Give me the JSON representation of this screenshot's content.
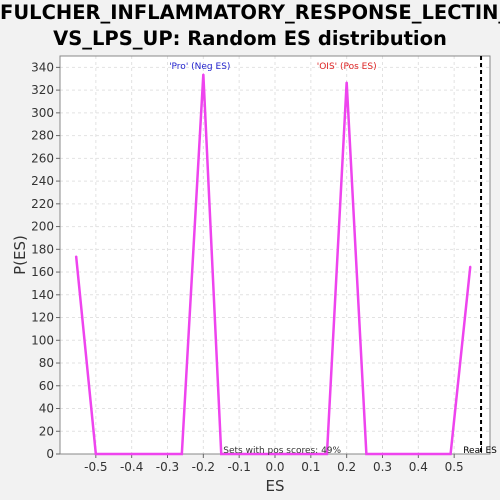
{
  "chart_data": {
    "type": "line",
    "title_lines": [
      "FULCHER_INFLAMMATORY_RESPONSE_LECTIN_",
      "VS_LPS_UP: Random ES distribution"
    ],
    "xlabel": "ES",
    "ylabel": "P(ES)",
    "xlim": [
      -0.6,
      0.6
    ],
    "ylim": [
      0,
      350
    ],
    "x_ticks": [
      -0.5,
      -0.4,
      -0.3,
      -0.2,
      -0.1,
      0.0,
      0.1,
      0.2,
      0.3,
      0.4,
      0.5
    ],
    "x_tick_labels": [
      "-0.5",
      "-0.4",
      "-0.3",
      "-0.2",
      "-0.1",
      "0.0",
      "0.1",
      "0.2",
      "0.3",
      "0.4",
      "0.5"
    ],
    "y_ticks": [
      0,
      20,
      40,
      60,
      80,
      100,
      120,
      140,
      160,
      180,
      200,
      220,
      240,
      260,
      280,
      300,
      320,
      340
    ],
    "y_tick_labels": [
      "0",
      "20",
      "40",
      "60",
      "80",
      "100",
      "120",
      "140",
      "160",
      "180",
      "200",
      "220",
      "240",
      "260",
      "280",
      "300",
      "320",
      "340"
    ],
    "grid": true,
    "series": [
      {
        "color": "#ee44ee",
        "points": [
          [
            -0.555,
            174
          ],
          [
            -0.5,
            0
          ],
          [
            -0.26,
            0
          ],
          [
            -0.2,
            334
          ],
          [
            -0.15,
            0
          ],
          [
            0.145,
            0
          ],
          [
            0.2,
            327
          ],
          [
            0.255,
            0
          ],
          [
            0.49,
            0
          ],
          [
            0.545,
            165
          ]
        ]
      }
    ],
    "annotations": [
      {
        "text": "'Pro' (Neg ES)",
        "x": -0.21,
        "color": "#2222cc"
      },
      {
        "text": "'OIS' (Pos ES)",
        "x": 0.2,
        "color": "#dd2222"
      }
    ],
    "footer_text": "Sets with pos scores: 49%",
    "real_es": {
      "x": 0.575,
      "label": "Real ES"
    }
  }
}
